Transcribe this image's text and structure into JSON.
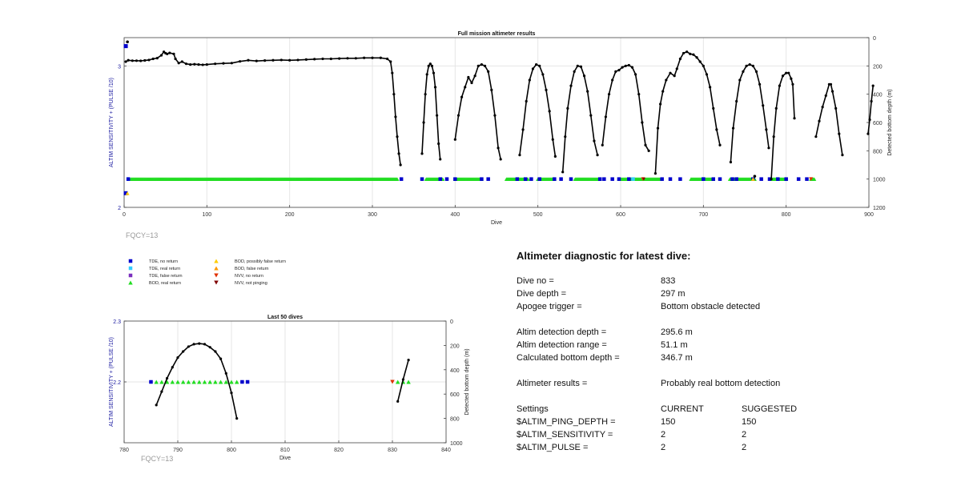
{
  "colors": {
    "tde_no_return": "#0000cc",
    "tde_real_return": "#33ccff",
    "tde_false_return": "#7b2fbe",
    "bod_real_return": "#22dd22",
    "bod_possibly_false": "#ffcc00",
    "bod_false_return": "#ff9900",
    "nvv_no_return": "#e03000",
    "nvv_not_pinging": "#800000",
    "depth_line": "#000000",
    "left_axis_label": "#1a1aa0",
    "fqcy_text": "#999999"
  },
  "legend": [
    {
      "marker": "square",
      "color_key": "tde_no_return",
      "label": "TDE, no return"
    },
    {
      "marker": "square",
      "color_key": "tde_real_return",
      "label": "TDE, real return"
    },
    {
      "marker": "square",
      "color_key": "tde_false_return",
      "label": "TDE, false return"
    },
    {
      "marker": "triangle-up",
      "color_key": "bod_real_return",
      "label": "BOD, real return"
    },
    {
      "marker": "triangle-up",
      "color_key": "bod_possibly_false",
      "label": "BOD, possibly false return"
    },
    {
      "marker": "triangle-up",
      "color_key": "bod_false_return",
      "label": "BOD, false return"
    },
    {
      "marker": "triangle-down",
      "color_key": "nvv_no_return",
      "label": "NVV, no return"
    },
    {
      "marker": "triangle-down",
      "color_key": "nvv_not_pinging",
      "label": "NVV, not pinging"
    }
  ],
  "chart_data": [
    {
      "type": "scatter",
      "title": "Full mission altimeter results",
      "xlabel": "Dive",
      "ylabel": "ALTIM SENSITIVITY + (PULSE /10)",
      "y2label": "Detected bottom depth (m)",
      "fqcy_label": "FQCY=13",
      "xlim": [
        0,
        900
      ],
      "ylim": [
        2,
        3.2
      ],
      "y2lim": [
        1200,
        0
      ],
      "xticks": [
        0,
        100,
        200,
        300,
        400,
        500,
        600,
        700,
        800,
        900
      ],
      "yticks": [
        2,
        3
      ],
      "y2ticks": [
        0,
        200,
        400,
        600,
        800,
        1000,
        1200
      ],
      "grid": true,
      "depth_series": [
        [
          [
            2,
            170
          ],
          [
            5,
            160
          ],
          [
            10,
            163
          ],
          [
            15,
            163
          ],
          [
            20,
            164
          ],
          [
            25,
            161
          ],
          [
            30,
            158
          ],
          [
            35,
            150
          ],
          [
            40,
            145
          ],
          [
            45,
            125
          ],
          [
            48,
            100
          ],
          [
            50,
            110
          ],
          [
            52,
            115
          ],
          [
            55,
            108
          ],
          [
            60,
            115
          ],
          [
            62,
            150
          ],
          [
            66,
            180
          ],
          [
            70,
            170
          ],
          [
            75,
            185
          ],
          [
            80,
            190
          ],
          [
            85,
            188
          ],
          [
            90,
            190
          ],
          [
            95,
            192
          ],
          [
            100,
            190
          ],
          [
            110,
            185
          ],
          [
            120,
            182
          ],
          [
            130,
            180
          ],
          [
            140,
            168
          ],
          [
            150,
            160
          ],
          [
            160,
            165
          ],
          [
            170,
            162
          ],
          [
            180,
            160
          ],
          [
            190,
            158
          ],
          [
            200,
            160
          ],
          [
            210,
            158
          ],
          [
            220,
            155
          ],
          [
            230,
            152
          ],
          [
            240,
            150
          ],
          [
            250,
            150
          ],
          [
            260,
            148
          ],
          [
            270,
            146
          ],
          [
            280,
            146
          ],
          [
            290,
            143
          ],
          [
            300,
            143
          ],
          [
            310,
            143
          ],
          [
            318,
            150
          ],
          [
            322,
            170
          ],
          [
            324,
            250
          ],
          [
            326,
            400
          ],
          [
            328,
            560
          ],
          [
            330,
            700
          ],
          [
            332,
            820
          ],
          [
            334,
            900
          ]
        ],
        [
          [
            360,
            820
          ],
          [
            362,
            600
          ],
          [
            364,
            400
          ],
          [
            366,
            260
          ],
          [
            368,
            200
          ],
          [
            370,
            185
          ],
          [
            372,
            200
          ],
          [
            374,
            250
          ],
          [
            376,
            350
          ],
          [
            378,
            550
          ],
          [
            380,
            750
          ],
          [
            382,
            860
          ]
        ],
        [
          [
            400,
            720
          ],
          [
            404,
            550
          ],
          [
            408,
            420
          ],
          [
            412,
            350
          ],
          [
            416,
            280
          ],
          [
            420,
            320
          ],
          [
            424,
            270
          ],
          [
            428,
            200
          ],
          [
            432,
            190
          ],
          [
            436,
            200
          ],
          [
            440,
            240
          ],
          [
            444,
            370
          ],
          [
            448,
            550
          ],
          [
            452,
            780
          ],
          [
            455,
            860
          ]
        ],
        [
          [
            478,
            830
          ],
          [
            482,
            650
          ],
          [
            486,
            450
          ],
          [
            490,
            300
          ],
          [
            494,
            220
          ],
          [
            498,
            190
          ],
          [
            502,
            200
          ],
          [
            506,
            260
          ],
          [
            510,
            370
          ],
          [
            514,
            520
          ],
          [
            518,
            720
          ],
          [
            521,
            840
          ]
        ],
        [
          [
            530,
            950
          ],
          [
            533,
            700
          ],
          [
            536,
            500
          ],
          [
            540,
            340
          ],
          [
            544,
            240
          ],
          [
            548,
            200
          ],
          [
            552,
            205
          ],
          [
            556,
            270
          ],
          [
            560,
            380
          ],
          [
            564,
            550
          ],
          [
            568,
            730
          ],
          [
            572,
            830
          ]
        ],
        [
          [
            578,
            760
          ],
          [
            582,
            560
          ],
          [
            586,
            400
          ],
          [
            590,
            300
          ],
          [
            594,
            240
          ],
          [
            598,
            230
          ],
          [
            602,
            210
          ],
          [
            606,
            200
          ],
          [
            610,
            195
          ],
          [
            614,
            210
          ],
          [
            618,
            260
          ],
          [
            622,
            400
          ],
          [
            626,
            600
          ],
          [
            630,
            760
          ],
          [
            634,
            800
          ]
        ],
        [
          [
            642,
            960
          ],
          [
            645,
            640
          ],
          [
            648,
            470
          ],
          [
            651,
            380
          ],
          [
            655,
            300
          ],
          [
            660,
            250
          ],
          [
            665,
            270
          ],
          [
            668,
            220
          ],
          [
            672,
            150
          ],
          [
            676,
            110
          ],
          [
            680,
            100
          ],
          [
            684,
            115
          ],
          [
            688,
            120
          ],
          [
            692,
            140
          ],
          [
            696,
            170
          ],
          [
            700,
            200
          ],
          [
            704,
            260
          ],
          [
            708,
            350
          ],
          [
            712,
            500
          ],
          [
            716,
            650
          ],
          [
            720,
            760
          ]
        ],
        [
          [
            733,
            880
          ],
          [
            736,
            640
          ],
          [
            740,
            450
          ],
          [
            744,
            300
          ],
          [
            748,
            240
          ],
          [
            752,
            200
          ],
          [
            756,
            190
          ],
          [
            760,
            200
          ],
          [
            764,
            240
          ],
          [
            768,
            330
          ],
          [
            772,
            480
          ],
          [
            776,
            650
          ],
          [
            779,
            780
          ]
        ],
        [
          [
            782,
            1000
          ],
          [
            785,
            700
          ],
          [
            788,
            500
          ],
          [
            792,
            340
          ],
          [
            796,
            270
          ],
          [
            800,
            250
          ],
          [
            803,
            250
          ],
          [
            806,
            290
          ],
          [
            808,
            330
          ],
          [
            810,
            570
          ]
        ],
        [
          [
            836,
            700
          ],
          [
            840,
            590
          ],
          [
            844,
            490
          ],
          [
            848,
            410
          ],
          [
            852,
            330
          ],
          [
            854,
            330
          ],
          [
            856,
            380
          ],
          [
            860,
            500
          ],
          [
            864,
            680
          ],
          [
            868,
            830
          ]
        ],
        [
          [
            899,
            680
          ],
          [
            901,
            580
          ],
          [
            903,
            450
          ],
          [
            905,
            340
          ]
        ]
      ],
      "bottom_markers": [
        {
          "x": 2,
          "y": 3.14,
          "kind": "tde_no_return"
        },
        {
          "x": 4,
          "y": 3.17,
          "kind": "depth_point"
        },
        {
          "x": 2,
          "y": 2.1,
          "kind": "tde_no_return"
        },
        {
          "x": 4,
          "y": 2.1,
          "kind": "bod_possibly_false"
        },
        {
          "x": 627,
          "y": 2.2,
          "kind": "nvv_no_return"
        },
        {
          "x": 628,
          "y": 2.2,
          "kind": "nvv_not_pinging"
        },
        {
          "x": 760,
          "y": 2.2,
          "kind": "bod_possibly_false"
        },
        {
          "x": 762,
          "y": 2.22,
          "kind": "depth_point"
        },
        {
          "x": 830,
          "y": 2.2,
          "kind": "nvv_no_return"
        }
      ],
      "bod_runs": [
        [
          8,
          330
        ],
        [
          365,
          385
        ],
        [
          400,
          432
        ],
        [
          462,
          488
        ],
        [
          500,
          520
        ],
        [
          545,
          575
        ],
        [
          598,
          648
        ],
        [
          685,
          712
        ],
        [
          732,
          762
        ],
        [
          782,
          800
        ],
        [
          830,
          834
        ]
      ],
      "tde_points": [
        5,
        335,
        360,
        382,
        390,
        400,
        432,
        440,
        475,
        485,
        492,
        502,
        520,
        528,
        540,
        575,
        580,
        590,
        598,
        610,
        650,
        660,
        672,
        700,
        712,
        720,
        735,
        740,
        760,
        770,
        780,
        790,
        800,
        815,
        825
      ],
      "tde_real_points": [
        5,
        615,
        700
      ]
    },
    {
      "type": "scatter",
      "title": "Last 50 dives",
      "xlabel": "Dive",
      "ylabel": "ALTIM SENSITIVITY + (PULSE /10)",
      "y2label": "Detected bottom depth (m)",
      "fqcy_label": "FQCY=13",
      "xlim": [
        780,
        840
      ],
      "ylim": [
        2.1,
        2.3
      ],
      "y2lim": [
        1000,
        0
      ],
      "xticks": [
        780,
        790,
        800,
        810,
        820,
        830,
        840
      ],
      "yticks": [
        2.2,
        2.3
      ],
      "y2ticks": [
        0,
        200,
        400,
        600,
        800,
        1000
      ],
      "grid": true,
      "depth_series": [
        [
          [
            786,
            690
          ],
          [
            787,
            580
          ],
          [
            788,
            470
          ],
          [
            789,
            380
          ],
          [
            790,
            300
          ],
          [
            791,
            250
          ],
          [
            792,
            210
          ],
          [
            793,
            190
          ],
          [
            794,
            185
          ],
          [
            795,
            190
          ],
          [
            796,
            215
          ],
          [
            797,
            250
          ],
          [
            798,
            310
          ],
          [
            799,
            430
          ],
          [
            800,
            590
          ],
          [
            801,
            800
          ]
        ],
        [
          [
            831,
            660
          ],
          [
            832,
            480
          ],
          [
            833,
            320
          ]
        ]
      ],
      "bod_points": [
        786,
        787,
        788,
        789,
        790,
        791,
        792,
        793,
        794,
        795,
        796,
        797,
        798,
        799,
        800,
        801,
        831,
        832,
        833
      ],
      "tde_points": [
        785,
        802,
        803
      ],
      "nvv_points": [
        830
      ]
    }
  ],
  "diagnostic": {
    "title": "Altimeter diagnostic for latest dive:",
    "rows": [
      {
        "label": "Dive no =",
        "value": "833"
      },
      {
        "label": "Dive depth =",
        "value": "297 m"
      },
      {
        "label": "Apogee trigger =",
        "value": "Bottom obstacle detected"
      },
      {
        "label": "",
        "value": ""
      },
      {
        "label": "Altim detection depth =",
        "value": "295.6 m"
      },
      {
        "label": "Altim detection range =",
        "value": "51.1 m"
      },
      {
        "label": "Calculated bottom depth =",
        "value": "346.7 m"
      },
      {
        "label": "",
        "value": ""
      },
      {
        "label": "Altimeter results =",
        "value": "Probably real bottom detection"
      },
      {
        "label": "",
        "value": ""
      }
    ],
    "settings_header": {
      "label": "Settings",
      "current": "CURRENT",
      "suggested": "SUGGESTED"
    },
    "settings": [
      {
        "label": "$ALTIM_PING_DEPTH =",
        "current": "150",
        "suggested": "150"
      },
      {
        "label": "$ALTIM_SENSITIVITY =",
        "current": "2",
        "suggested": "2"
      },
      {
        "label": "$ALTIM_PULSE =",
        "current": "2",
        "suggested": "2"
      }
    ]
  }
}
